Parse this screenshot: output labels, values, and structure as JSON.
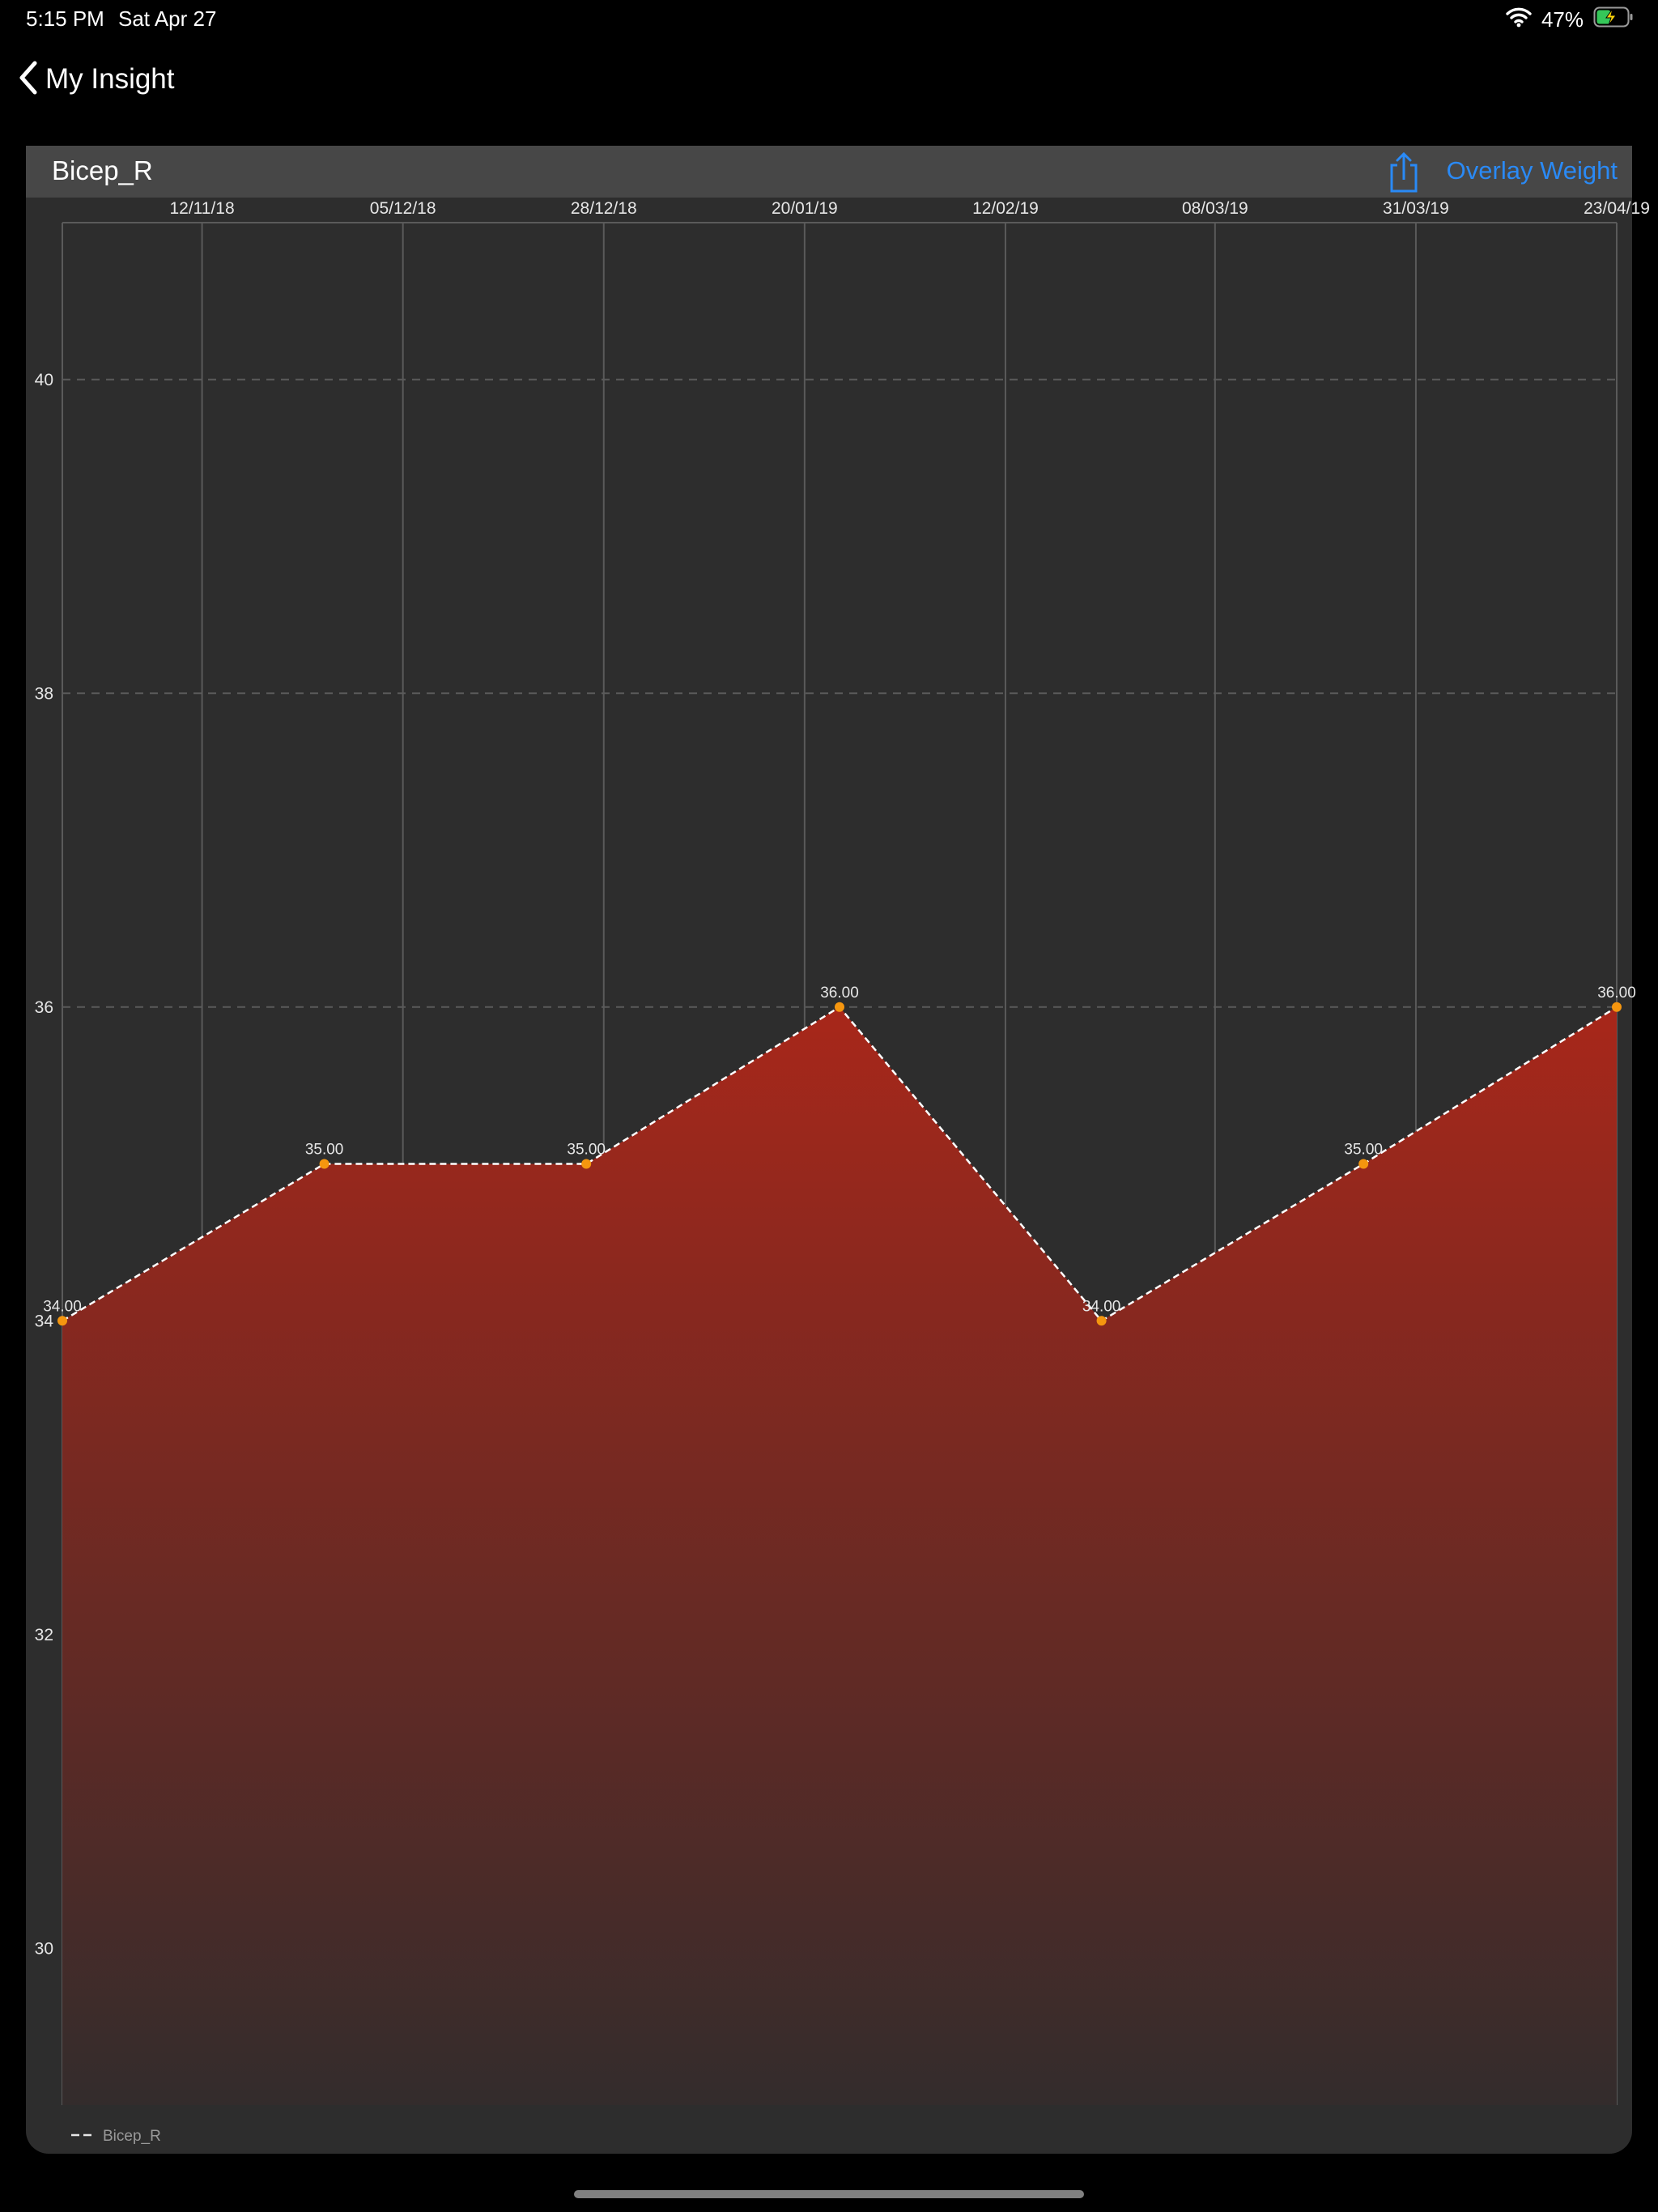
{
  "status_bar": {
    "time": "5:15 PM",
    "date": "Sat Apr 27",
    "battery_percent": "47%",
    "battery_level": 0.47,
    "wifi_icon": "wifi-icon",
    "battery_icon": "battery-charging-icon"
  },
  "nav": {
    "back_label": "My Insight",
    "back_icon": "chevron-left-icon"
  },
  "card": {
    "title": "Bicep_R",
    "share_icon": "share-icon",
    "overlay_label": "Overlay Weight"
  },
  "chart_data": {
    "type": "area",
    "title": "",
    "xlabel": "",
    "ylabel": "",
    "x_ticks": [
      "12/11/18",
      "05/12/18",
      "28/12/18",
      "20/01/19",
      "12/02/19",
      "08/03/19",
      "31/03/19",
      "23/04/19"
    ],
    "y_ticks": [
      30,
      32,
      34,
      36,
      38,
      40
    ],
    "xlim": [
      "2018-10-27",
      "2019-04-23"
    ],
    "ylim": [
      29,
      41
    ],
    "grid": {
      "vertical": true,
      "horizontal_dashed": true
    },
    "series": [
      {
        "name": "Bicep_R",
        "x": [
          "2018-10-27",
          "2018-11-26",
          "2018-12-26",
          "2019-01-24",
          "2019-02-23",
          "2019-03-25",
          "2019-04-23"
        ],
        "values": [
          34,
          35,
          35,
          36,
          34,
          35,
          36
        ],
        "labels": [
          "34.00",
          "35.00",
          "35.00",
          "36.00",
          "34.00",
          "35.00",
          "36.00"
        ]
      }
    ],
    "legend": {
      "position": "bottom-left",
      "label": "Bicep_R"
    },
    "colors": {
      "fill_top": "#a8271a",
      "fill_bottom": "#332c2c",
      "line": "#ffffff",
      "point": "#f5960f",
      "grid": "#5a5a5a",
      "text": "#e6e6e6"
    }
  },
  "home_indicator": "home-indicator"
}
